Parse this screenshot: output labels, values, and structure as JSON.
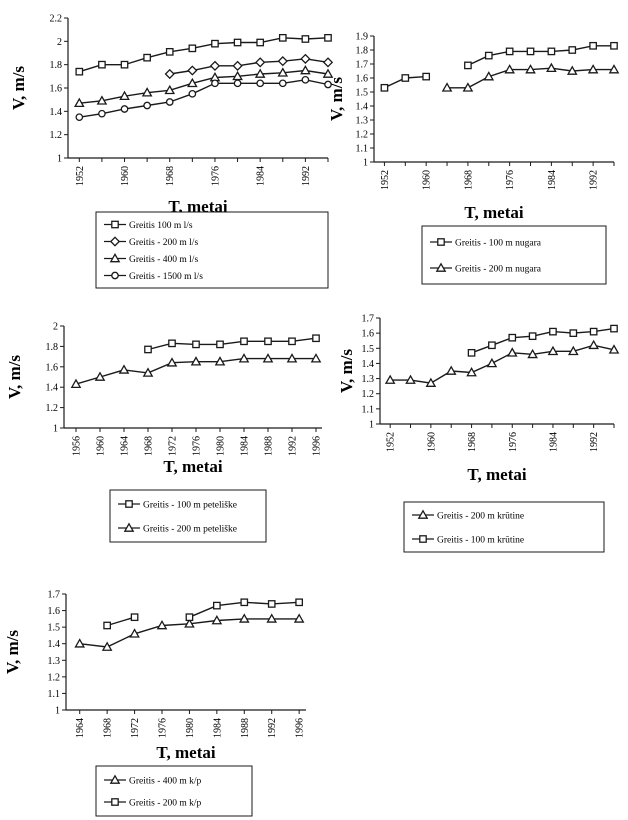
{
  "chart_data": [
    {
      "type": "line",
      "ylabel": "V, m/s",
      "xlabel": "T, metai",
      "ylim": [
        1,
        2.2
      ],
      "yticks": [
        "1",
        "1.2",
        "1.4",
        "1.6",
        "1.8",
        "2",
        "2.2"
      ],
      "xticks": [
        "1952",
        "1960",
        "1968",
        "1976",
        "1984",
        "1992"
      ],
      "xlim": [
        1950,
        1996
      ],
      "legend_position": "bottom",
      "series": [
        {
          "name": "Greitis 100 m l/s",
          "marker": "square",
          "x": [
            1952,
            1956,
            1960,
            1964,
            1968,
            1972,
            1976,
            1980,
            1984,
            1988,
            1992,
            1996
          ],
          "y": [
            1.74,
            1.8,
            1.8,
            1.86,
            1.91,
            1.94,
            1.98,
            1.99,
            1.99,
            2.03,
            2.02,
            2.03
          ]
        },
        {
          "name": "Greitis - 200 m l/s",
          "marker": "diamond",
          "x": [
            1968,
            1972,
            1976,
            1980,
            1984,
            1988,
            1992,
            1996
          ],
          "y": [
            1.72,
            1.75,
            1.79,
            1.79,
            1.82,
            1.83,
            1.85,
            1.82
          ]
        },
        {
          "name": "Greitis - 400 m l/s",
          "marker": "triangle",
          "x": [
            1952,
            1956,
            1960,
            1964,
            1968,
            1972,
            1976,
            1980,
            1984,
            1988,
            1992,
            1996
          ],
          "y": [
            1.47,
            1.49,
            1.53,
            1.56,
            1.58,
            1.64,
            1.69,
            1.7,
            1.72,
            1.73,
            1.75,
            1.72
          ]
        },
        {
          "name": "Greitis - 1500 m l/s",
          "marker": "circle",
          "x": [
            1952,
            1956,
            1960,
            1964,
            1968,
            1972,
            1976,
            1980,
            1984,
            1988,
            1992,
            1996
          ],
          "y": [
            1.35,
            1.38,
            1.42,
            1.45,
            1.48,
            1.55,
            1.64,
            1.64,
            1.64,
            1.64,
            1.67,
            1.63
          ]
        }
      ]
    },
    {
      "type": "line",
      "ylabel": "V, m/s",
      "xlabel": "T, metai",
      "ylim": [
        1,
        1.9
      ],
      "yticks": [
        "1",
        "1.1",
        "1.2",
        "1.3",
        "1.4",
        "1.5",
        "1.6",
        "1.7",
        "1.8",
        "1.9"
      ],
      "xticks": [
        "1952",
        "1960",
        "1968",
        "1976",
        "1984",
        "1992"
      ],
      "xlim": [
        1950,
        1996
      ],
      "legend_position": "bottom",
      "series": [
        {
          "name": "Greitis - 100 m nugara",
          "marker": "square",
          "segments": [
            {
              "x": [
                1952,
                1956,
                1960
              ],
              "y": [
                1.53,
                1.6,
                1.61
              ]
            },
            {
              "x": [
                1968,
                1972,
                1976,
                1980,
                1984,
                1988,
                1992,
                1996
              ],
              "y": [
                1.69,
                1.76,
                1.79,
                1.79,
                1.79,
                1.8,
                1.83,
                1.83
              ]
            }
          ]
        },
        {
          "name": "Greitis - 200 m nugara",
          "marker": "triangle",
          "x": [
            1964,
            1968,
            1972,
            1976,
            1980,
            1984,
            1988,
            1992,
            1996
          ],
          "y": [
            1.53,
            1.53,
            1.61,
            1.66,
            1.66,
            1.67,
            1.65,
            1.66,
            1.66
          ]
        }
      ]
    },
    {
      "type": "line",
      "ylabel": "V, m/s",
      "xlabel": "T, metai",
      "ylim": [
        1,
        2
      ],
      "yticks": [
        "1",
        "1.2",
        "1.4",
        "1.6",
        "1.8",
        "2"
      ],
      "xticks": [
        "1956",
        "1960",
        "1964",
        "1968",
        "1972",
        "1976",
        "1980",
        "1984",
        "1988",
        "1992",
        "1996"
      ],
      "xlim": [
        1954,
        1997
      ],
      "legend_position": "bottom",
      "series": [
        {
          "name": "Greitis - 100 m peteliške",
          "marker": "square",
          "x": [
            1968,
            1972,
            1976,
            1980,
            1984,
            1988,
            1992,
            1996
          ],
          "y": [
            1.77,
            1.83,
            1.82,
            1.82,
            1.85,
            1.85,
            1.85,
            1.88
          ]
        },
        {
          "name": "Greitis - 200 m peteliške",
          "marker": "triangle",
          "x": [
            1956,
            1960,
            1964,
            1968,
            1972,
            1976,
            1980,
            1984,
            1988,
            1992,
            1996
          ],
          "y": [
            1.43,
            1.5,
            1.57,
            1.54,
            1.64,
            1.65,
            1.65,
            1.68,
            1.68,
            1.68,
            1.68
          ]
        }
      ]
    },
    {
      "type": "line",
      "ylabel": "V, m/s",
      "xlabel": "T, metai",
      "ylim": [
        1,
        1.7
      ],
      "yticks": [
        "1",
        "1.1",
        "1.2",
        "1.3",
        "1.4",
        "1.5",
        "1.6",
        "1.7"
      ],
      "xticks": [
        "1952",
        "1960",
        "1968",
        "1976",
        "1984",
        "1992"
      ],
      "xlim": [
        1950,
        1996
      ],
      "legend_position": "bottom",
      "series": [
        {
          "name": "Greitis - 200 m krūtine",
          "marker": "triangle",
          "x": [
            1952,
            1956,
            1960,
            1964,
            1968,
            1972,
            1976,
            1980,
            1984,
            1988,
            1992,
            1996
          ],
          "y": [
            1.29,
            1.29,
            1.27,
            1.35,
            1.34,
            1.4,
            1.47,
            1.46,
            1.48,
            1.48,
            1.52,
            1.49
          ]
        },
        {
          "name": "Greitis - 100 m krūtine",
          "marker": "square",
          "x": [
            1968,
            1972,
            1976,
            1980,
            1984,
            1988,
            1992,
            1996
          ],
          "y": [
            1.47,
            1.52,
            1.57,
            1.58,
            1.61,
            1.6,
            1.61,
            1.63
          ]
        }
      ]
    },
    {
      "type": "line",
      "ylabel": "V, m/s",
      "xlabel": "T, metai",
      "ylim": [
        1,
        1.7
      ],
      "yticks": [
        "1",
        "1.1",
        "1.2",
        "1.3",
        "1.4",
        "1.5",
        "1.6",
        "1.7"
      ],
      "xticks": [
        "1964",
        "1968",
        "1972",
        "1976",
        "1980",
        "1984",
        "1988",
        "1992",
        "1996"
      ],
      "xlim": [
        1962,
        1997
      ],
      "legend_position": "bottom",
      "series": [
        {
          "name": "Greitis - 400 m k/p",
          "marker": "triangle",
          "x": [
            1964,
            1968,
            1972,
            1976,
            1980,
            1984,
            1988,
            1992,
            1996
          ],
          "y": [
            1.4,
            1.38,
            1.46,
            1.51,
            1.52,
            1.54,
            1.55,
            1.55,
            1.55
          ]
        },
        {
          "name": "Greitis - 200 m k/p",
          "marker": "square",
          "segments": [
            {
              "x": [
                1968,
                1972
              ],
              "y": [
                1.51,
                1.56
              ]
            },
            {
              "x": [
                1980,
                1984,
                1988,
                1992,
                1996
              ],
              "y": [
                1.56,
                1.63,
                1.65,
                1.64,
                1.65
              ]
            }
          ]
        }
      ]
    }
  ]
}
